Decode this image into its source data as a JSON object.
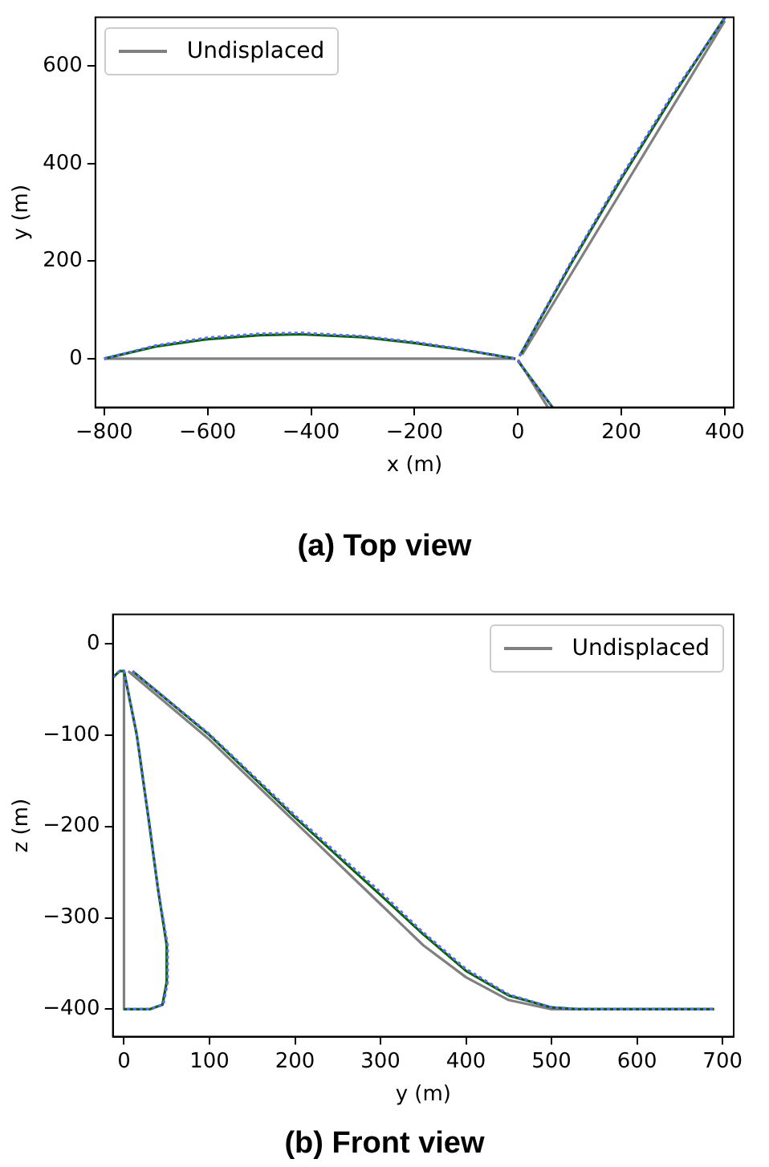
{
  "chart_data": [
    {
      "type": "line",
      "title": "(a) Top view",
      "xlabel": "x (m)",
      "ylabel": "y (m)",
      "xlim": [
        -817,
        417
      ],
      "ylim": [
        -100,
        700
      ],
      "xticks": [
        {
          "value": -800,
          "label": "−800"
        },
        {
          "value": -600,
          "label": "−600"
        },
        {
          "value": -400,
          "label": "−400"
        },
        {
          "value": -200,
          "label": "−200"
        },
        0,
        200,
        400
      ],
      "yticks": [
        0,
        200,
        400,
        600
      ],
      "grid": false,
      "legend": "top left",
      "series": [
        {
          "name": "Undisplaced",
          "color": "#808080",
          "line_style": "solid",
          "x": [
            -800,
            -5,
            null,
            8,
            400,
            null,
            0,
            58
          ],
          "values": [
            0,
            0,
            null,
            8,
            693,
            null,
            -2,
            -100
          ]
        },
        {
          "color": "#006400",
          "line_style": "solid",
          "x": [
            -800,
            -700,
            -600,
            -500,
            -420,
            -300,
            -200,
            -100,
            -5,
            null,
            3,
            100,
            200,
            300,
            400,
            null,
            0,
            67
          ],
          "values": [
            0,
            25,
            40,
            48,
            50,
            44,
            32,
            17,
            0,
            null,
            5,
            190,
            370,
            540,
            700,
            null,
            -5,
            -100
          ]
        },
        {
          "color": "#6666ff",
          "line_style": "dotted",
          "x": [
            -800,
            -700,
            -600,
            -500,
            -420,
            -300,
            -200,
            -100,
            -5,
            null,
            3,
            100,
            200,
            300,
            400,
            null,
            0,
            67
          ],
          "values": [
            0,
            27,
            43,
            51,
            53,
            46,
            34,
            18,
            0,
            null,
            6,
            193,
            374,
            544,
            699,
            null,
            -5,
            -100
          ]
        }
      ]
    },
    {
      "type": "line",
      "title": "(b) Front view",
      "xlabel": "y (m)",
      "ylabel": "z (m)",
      "xlim": [
        -13,
        713
      ],
      "ylim": [
        -430,
        32
      ],
      "xticks": [
        0,
        100,
        200,
        300,
        400,
        500,
        600,
        700
      ],
      "yticks": [
        0,
        {
          "value": -100,
          "label": "−100"
        },
        {
          "value": -200,
          "label": "−200"
        },
        {
          "value": -300,
          "label": "−300"
        },
        {
          "value": -400,
          "label": "−400"
        }
      ],
      "grid": false,
      "legend": "top right",
      "series": [
        {
          "name": "Undisplaced",
          "color": "#808080",
          "line_style": "solid",
          "x": [
            0,
            0,
            null,
            5,
            100,
            200,
            300,
            350,
            400,
            450,
            500,
            690
          ],
          "values": [
            -30,
            -400,
            null,
            -30,
            -105,
            -195,
            -285,
            -330,
            -365,
            -390,
            -400,
            -400
          ]
        },
        {
          "color": "#006400",
          "line_style": "solid",
          "x": [
            -13,
            -5,
            0,
            15,
            30,
            40,
            50,
            50,
            45,
            30,
            0,
            null,
            10,
            100,
            200,
            300,
            350,
            400,
            450,
            500,
            530,
            690
          ],
          "values": [
            -37,
            -30,
            -30,
            -100,
            -200,
            -270,
            -330,
            -370,
            -395,
            -400,
            -400,
            null,
            -30,
            -100,
            -190,
            -275,
            -318,
            -358,
            -385,
            -398,
            -400,
            -400
          ]
        },
        {
          "color": "#6666ff",
          "line_style": "dotted",
          "x": [
            -13,
            -5,
            0,
            15,
            30,
            40,
            51,
            51,
            46,
            30,
            0,
            null,
            10,
            100,
            200,
            300,
            350,
            400,
            450,
            500,
            530,
            690
          ],
          "values": [
            -37,
            -30,
            -30,
            -100,
            -200,
            -270,
            -330,
            -370,
            -395,
            -400,
            -400,
            null,
            -30,
            -99,
            -188,
            -272,
            -316,
            -356,
            -384,
            -398,
            -400,
            -400
          ]
        }
      ]
    }
  ]
}
